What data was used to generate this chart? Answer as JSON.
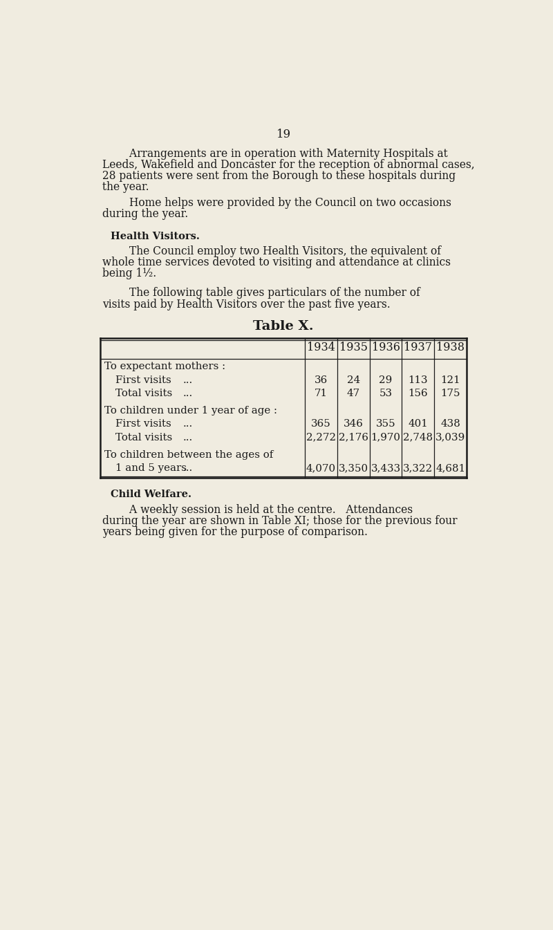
{
  "bg_color": "#f0ece0",
  "text_color": "#1a1a1a",
  "page_number": "19",
  "para1_indent": "        Arrangements are in operation with Maternity Hospitals at",
  "para1_lines": [
    "Leeds, Wakefield and Doncaster for the reception of abnormal cases,",
    "28 patients were sent from the Borough to these hospitals during",
    "the year."
  ],
  "para2_indent": "        Home helps were provided by the Council on two occasions",
  "para2_lines": [
    "during the year."
  ],
  "section_heading": "Health Visitors.",
  "para3_indent": "        The Council employ two Health Visitors, the equivalent of",
  "para3_lines": [
    "whole time services devoted to visiting and attendance at clinics",
    "being 1½."
  ],
  "para4_indent": "        The following table gives particulars of the number of",
  "para4_lines": [
    "visits paid by Health Visitors over the past five years."
  ],
  "table_title": "Table X.",
  "years": [
    "1934",
    "1935",
    "1936",
    "1937",
    "1938"
  ],
  "section_heading2": "Child Welfare.",
  "para5_indent": "        A weekly session is held at the centre.   Attendances",
  "para5_lines": [
    "during the year are shown in Table XI; those for the previous four",
    "years being given for the purpose of comparison."
  ]
}
